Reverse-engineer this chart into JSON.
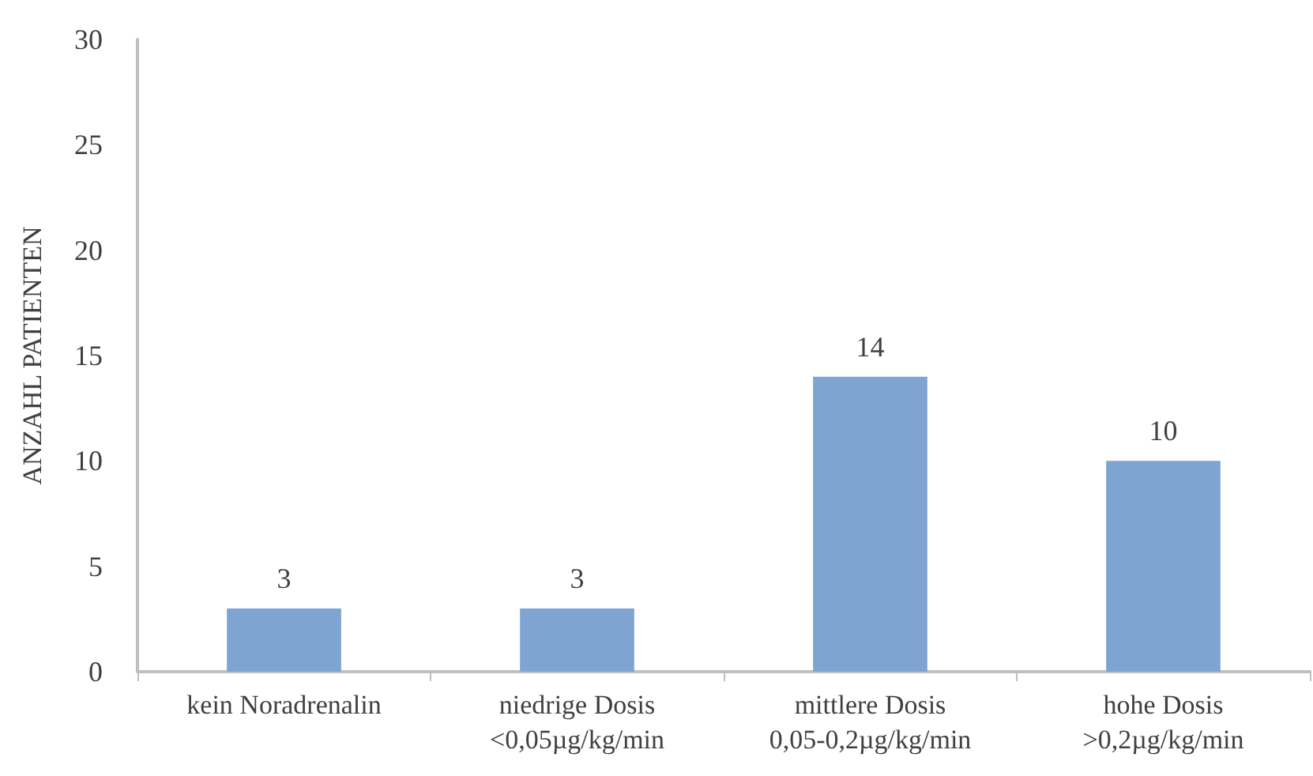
{
  "chart_data": {
    "type": "bar",
    "ylabel": "ANZAHL PATIENTEN",
    "categories": [
      "kein Noradrenalin",
      "niedrige Dosis\n<0,05µg/kg/min",
      "mittlere Dosis\n0,05-0,2µg/kg/min",
      "hohe Dosis\n>0,2µg/kg/min"
    ],
    "values": [
      3,
      3,
      14,
      10
    ],
    "color": "#7fa4d1",
    "ylim": [
      0,
      30
    ],
    "yticks": [
      0,
      5,
      10,
      15,
      20,
      25,
      30
    ],
    "grid": false,
    "data_labels": true
  }
}
